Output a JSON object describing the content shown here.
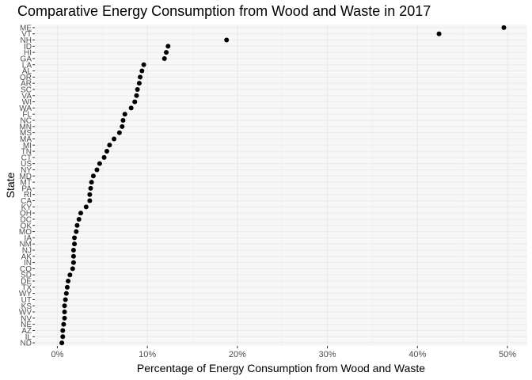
{
  "chart_data": {
    "type": "scatter",
    "title": "Comparative Energy Consumption from Wood and Waste in 2017",
    "xlabel": "Percentage of Energy Consumption from Wood and Waste",
    "ylabel": "State",
    "xlim": [
      -2.5,
      52.2
    ],
    "x_ticks": [
      0,
      10,
      20,
      30,
      40,
      50
    ],
    "x_tick_labels": [
      "0%",
      "10%",
      "20%",
      "30%",
      "40%",
      "50%"
    ],
    "grid": true,
    "panel_background": "#f7f7f7",
    "grid_color": "#ebebeb",
    "point_color": "#000000",
    "states": [
      "ME",
      "VT",
      "NH",
      "ID",
      "HI",
      "GA",
      "LA",
      "AL",
      "OR",
      "AR",
      "SC",
      "VA",
      "WI",
      "WA",
      "FL",
      "NC",
      "MN",
      "MS",
      "MA",
      "MI",
      "TN",
      "CT",
      "US",
      "NY",
      "MD",
      "MT",
      "PA",
      "RI",
      "CA",
      "KY",
      "OH",
      "DC",
      "OK",
      "MO",
      "IA",
      "NM",
      "NJ",
      "AK",
      "IN",
      "CO",
      "SD",
      "DE",
      "TX",
      "WY",
      "UT",
      "KS",
      "WV",
      "NV",
      "NE",
      "AZ",
      "IL",
      "ND"
    ],
    "values": [
      49.6,
      42.4,
      18.8,
      12.3,
      12.1,
      11.9,
      9.6,
      9.4,
      9.2,
      9.1,
      8.9,
      8.8,
      8.6,
      8.2,
      7.5,
      7.3,
      7.2,
      6.9,
      6.3,
      5.8,
      5.5,
      5.2,
      4.7,
      4.4,
      4.0,
      3.8,
      3.7,
      3.6,
      3.6,
      3.2,
      2.6,
      2.4,
      2.2,
      2.1,
      1.9,
      1.9,
      1.8,
      1.8,
      1.8,
      1.7,
      1.4,
      1.2,
      1.1,
      1.0,
      0.9,
      0.8,
      0.8,
      0.8,
      0.7,
      0.6,
      0.6,
      0.5
    ]
  }
}
